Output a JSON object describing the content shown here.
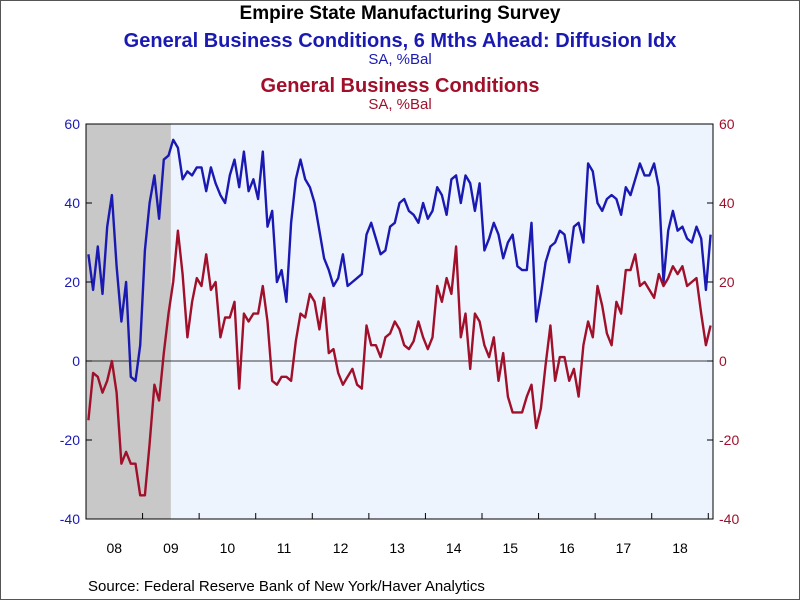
{
  "header": {
    "title": "Empire State Manufacturing Survey",
    "series1_title": "General Business Conditions, 6 Mths Ahead: Diffusion Idx",
    "series1_units": "SA, %Bal",
    "series2_title": "General Business Conditions",
    "series2_units": "SA, %Bal"
  },
  "footer": {
    "source": "Source:  Federal Reserve Bank of New York/Haver Analytics"
  },
  "colors": {
    "series1": "#1a1ab3",
    "series2": "#a0102a",
    "recession": "#c8c8c8",
    "plot_bg": "#eef4fd"
  },
  "chart_data": {
    "type": "line",
    "x_start": "2008-01",
    "x_frequency": "monthly",
    "ylim": [
      -40,
      60
    ],
    "yticks": [
      -40,
      -20,
      0,
      20,
      40,
      60
    ],
    "left_axis_tick_labels": [
      "-40",
      "-20",
      "0",
      "20",
      "40",
      "60"
    ],
    "right_axis_tick_labels": [
      "-40",
      "-20",
      "0",
      "20",
      "40",
      "60"
    ],
    "x_tick_labels": [
      "08",
      "09",
      "10",
      "11",
      "12",
      "13",
      "14",
      "15",
      "16",
      "17",
      "18"
    ],
    "shaded_recession": {
      "start": "2008-01",
      "end": "2009-06"
    },
    "zero_line": true,
    "grid": false,
    "series": [
      {
        "name": "General Business Conditions, 6 Mths Ahead: Diffusion Idx",
        "color": "#1a1ab3",
        "values": [
          27,
          18,
          29,
          17,
          34,
          42,
          24,
          10,
          20,
          -4,
          -5,
          4,
          28,
          40,
          47,
          36,
          51,
          52,
          56,
          54,
          46,
          48,
          47,
          49,
          49,
          43,
          49,
          45,
          42,
          40,
          47,
          51,
          44,
          53,
          43,
          46,
          41,
          53,
          34,
          38,
          20,
          23,
          15,
          35,
          46,
          51,
          46,
          44,
          40,
          33,
          26,
          23,
          19,
          21,
          27,
          19,
          20,
          21,
          22,
          32,
          35,
          31,
          27,
          28,
          34,
          35,
          40,
          41,
          38,
          37,
          35,
          40,
          36,
          38,
          44,
          42,
          37,
          46,
          47,
          40,
          47,
          45,
          38,
          45,
          28,
          31,
          35,
          32,
          26,
          30,
          32,
          24,
          23,
          23,
          35,
          10,
          17,
          25,
          29,
          30,
          33,
          32,
          25,
          34,
          35,
          30,
          50,
          48,
          40,
          38,
          41,
          42,
          41,
          37,
          44,
          42,
          46,
          50,
          47,
          47,
          50,
          44,
          20,
          33,
          38,
          33,
          34,
          31,
          30,
          34,
          31,
          18,
          32
        ]
      },
      {
        "name": "General Business Conditions",
        "color": "#a0102a",
        "values": [
          -15,
          -3,
          -4,
          -8,
          -5,
          0,
          -8,
          -26,
          -23,
          -26,
          -26,
          -34,
          -34,
          -21,
          -6,
          -10,
          2,
          12,
          20,
          33,
          22,
          6,
          15,
          21,
          19,
          27,
          18,
          20,
          6,
          11,
          11,
          15,
          -7,
          12,
          10,
          12,
          12,
          19,
          10,
          -5,
          -6,
          -4,
          -4,
          -5,
          5,
          12,
          11,
          17,
          15,
          8,
          16,
          2,
          3,
          -3,
          -6,
          -4,
          -2,
          -6,
          -7,
          9,
          4,
          4,
          1,
          6,
          7,
          10,
          8,
          4,
          3,
          5,
          10,
          6,
          3,
          6,
          19,
          15,
          21,
          17,
          29,
          6,
          12,
          -2,
          12,
          10,
          4,
          1,
          6,
          -5,
          2,
          -9,
          -13,
          -13,
          -13,
          -9,
          -6,
          -17,
          -12,
          -1,
          9,
          -5,
          1,
          1,
          -5,
          -2,
          -9,
          4,
          10,
          6,
          19,
          14,
          7,
          4,
          15,
          12,
          23,
          23,
          27,
          19,
          20,
          18,
          16,
          22,
          19,
          21,
          24,
          22,
          24,
          19,
          20,
          21,
          12,
          4,
          9
        ]
      }
    ]
  }
}
